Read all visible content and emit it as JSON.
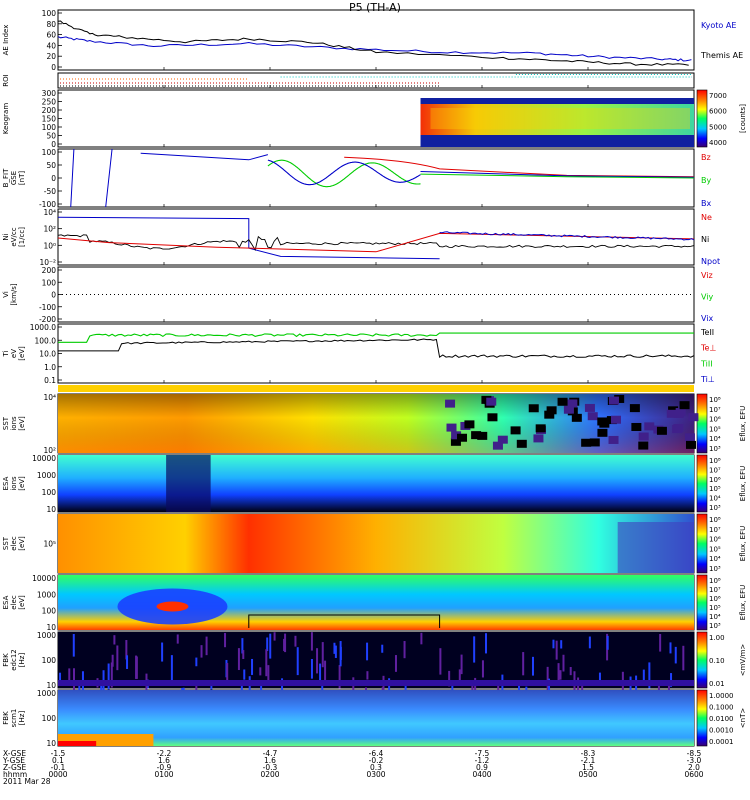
{
  "title": "P5 (TH-A)",
  "colors": {
    "black": "#000000",
    "red": "#e00000",
    "green": "#00cc00",
    "blue": "#0000c8"
  },
  "chart_data": {
    "type": "line",
    "x_ticks": [
      {
        "label": "0000",
        "xgse": "-1.5",
        "ygse": "0.1",
        "zgse": "-0.1"
      },
      {
        "label": "0100",
        "xgse": "-2.2",
        "ygse": "1.6",
        "zgse": "-0.9"
      },
      {
        "label": "0200",
        "xgse": "-4.7",
        "ygse": "1.6",
        "zgse": "-0.3"
      },
      {
        "label": "0300",
        "xgse": "-6.4",
        "ygse": "-0.2",
        "zgse": "0.3"
      },
      {
        "label": "0400",
        "xgse": "-7.5",
        "ygse": "-1.2",
        "zgse": "0.9"
      },
      {
        "label": "0500",
        "xgse": "-8.3",
        "ygse": "-2.1",
        "zgse": "1.5"
      },
      {
        "label": "0600",
        "xgse": "-8.5",
        "ygse": "-3.0",
        "zgse": "2.0"
      }
    ],
    "axis_rows": [
      "X-GSE",
      "Y-GSE",
      "Z-GSE",
      "hhmm",
      "2011 Mar 28"
    ],
    "panels": [
      {
        "ylabel": "AE Index",
        "ticks": [
          "100",
          "80",
          "60",
          "40",
          "20",
          "0"
        ],
        "series": [
          {
            "name": "Kyoto AE",
            "color": "#0000c8",
            "x": [
              0,
              0.05,
              0.15,
              0.3,
              0.45,
              0.6,
              0.75,
              0.85,
              0.95,
              1
            ],
            "y": [
              55,
              48,
              40,
              44,
              36,
              30,
              28,
              22,
              18,
              16
            ]
          },
          {
            "name": "Themis AE",
            "color": "#000000",
            "x": [
              0,
              0.05,
              0.1,
              0.2,
              0.3,
              0.4,
              0.5,
              0.7,
              0.8,
              0.9,
              1
            ],
            "y": [
              82,
              60,
              55,
              47,
              52,
              46,
              30,
              20,
              15,
              10,
              8
            ]
          }
        ]
      },
      {
        "ylabel": "ROI",
        "ticks": []
      },
      {
        "ylabel": "Keogram",
        "ticks": [
          "300",
          "250",
          "200",
          "150",
          "100",
          "50",
          "0"
        ],
        "colorbar": {
          "ticks": [
            "7000",
            "6000",
            "5000",
            "4000"
          ],
          "label": "[counts]"
        }
      },
      {
        "ylabel": [
          "B_FIT",
          "GSE",
          "[nT]"
        ],
        "ticks": [
          "100",
          "50",
          "0",
          "-50",
          "-100"
        ],
        "series": [
          {
            "name": "Bz",
            "color": "#e00000"
          },
          {
            "name": "By",
            "color": "#00cc00"
          },
          {
            "name": "Bx",
            "color": "#0000c8"
          }
        ]
      },
      {
        "ylabel": [
          "Ni",
          "eV/cc",
          "[1/cc]"
        ],
        "ticks": [
          "10⁴",
          "10²",
          "10⁰",
          "10⁻²"
        ],
        "series": [
          {
            "name": "Ne",
            "color": "#e00000"
          },
          {
            "name": "Ni",
            "color": "#000000"
          },
          {
            "name": "Npot",
            "color": "#0000c8"
          }
        ]
      },
      {
        "ylabel": [
          "Vi",
          "[km/s]"
        ],
        "ticks": [
          "200",
          "100",
          "0",
          "-100",
          "-200"
        ],
        "series": [
          {
            "name": "Viz",
            "color": "#e00000"
          },
          {
            "name": "Viy",
            "color": "#00cc00"
          },
          {
            "name": "Vix",
            "color": "#0000c8"
          }
        ]
      },
      {
        "ylabel": [
          "Ti",
          "eV",
          "[eV]"
        ],
        "ticks": [
          "1000.0",
          "100.0",
          "10.0",
          "1.0",
          "0.1"
        ],
        "series": [
          {
            "name": "TeII",
            "color": "#000000"
          },
          {
            "name": "Te⊥",
            "color": "#e00000"
          },
          {
            "name": "TiII",
            "color": "#00cc00"
          },
          {
            "name": "Ti⊥",
            "color": "#0000c8"
          }
        ]
      },
      {
        "ylabel": [
          "SST",
          "ions",
          "[eV]"
        ],
        "ticks": [
          "10⁴",
          "10²"
        ],
        "colorbar": {
          "ticks": [
            "10⁸",
            "10⁷",
            "10⁶",
            "10⁵",
            "10⁴",
            "10³"
          ],
          "label": "Eflux, EFU"
        }
      },
      {
        "ylabel": [
          "ESA",
          "ions",
          "[eV]"
        ],
        "ticks": [
          "10000",
          "1000",
          "100",
          "10"
        ],
        "colorbar": {
          "ticks": [
            "10⁸",
            "10⁷",
            "10⁶",
            "10⁵",
            "10⁴",
            "10³"
          ],
          "label": "Eflux, EFU"
        }
      },
      {
        "ylabel": [
          "SST",
          "elec",
          "[eV]"
        ],
        "ticks": [
          "10⁵"
        ],
        "colorbar": {
          "ticks": [
            "10⁸",
            "10⁷",
            "10⁶",
            "10⁵",
            "10⁴",
            "10³"
          ],
          "label": "Eflux, EFU"
        }
      },
      {
        "ylabel": [
          "ESA",
          "elec",
          "[eV]"
        ],
        "ticks": [
          "10000",
          "1000",
          "100",
          "10"
        ],
        "colorbar": {
          "ticks": [
            "10⁸",
            "10⁷",
            "10⁶",
            "10⁵",
            "10⁴",
            "10³"
          ],
          "label": "Eflux, EFU"
        }
      },
      {
        "ylabel": [
          "FBK",
          "edc12",
          "[Hz]"
        ],
        "ticks": [
          "1000",
          "100",
          "10"
        ],
        "colorbar": {
          "ticks": [
            "1.00",
            "0.10",
            "0.01"
          ],
          "label": "<mV/m>"
        }
      },
      {
        "ylabel": [
          "FBK",
          "scm1",
          "[Hz]"
        ],
        "ticks": [
          "1000",
          "100",
          "10"
        ],
        "colorbar": {
          "ticks": [
            "1.0000",
            "0.1000",
            "0.0100",
            "0.0010",
            "0.0001"
          ],
          "label": "<nT>"
        }
      }
    ]
  }
}
